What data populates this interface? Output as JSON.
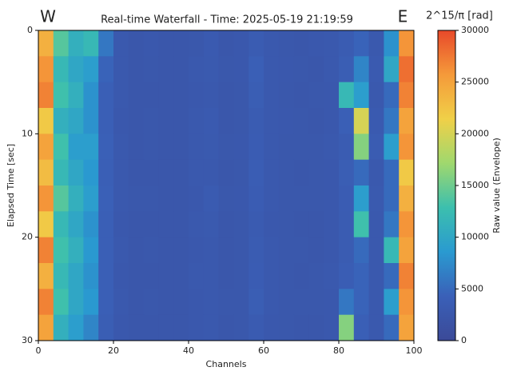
{
  "chart_data": {
    "type": "heatmap",
    "title": "Real-time Waterfall - Time: 2025-05-19 21:19:59",
    "annotations": [
      "W",
      "E"
    ],
    "xlabel": "Channels",
    "ylabel": "Elapsed Time [sec]",
    "colorbar_title": "2^15/π [rad]",
    "colorbar_label": "Raw value (Envelope)",
    "xlim": [
      0,
      100
    ],
    "ylim": [
      30,
      0
    ],
    "xticks": [
      0,
      20,
      40,
      60,
      80,
      100
    ],
    "yticks": [
      0,
      10,
      20,
      30
    ],
    "clim": [
      0,
      30000
    ],
    "cticks": [
      0,
      5000,
      10000,
      15000,
      20000,
      25000,
      30000
    ],
    "colormap": [
      "#3b4a98",
      "#3a60b8",
      "#2a9ad0",
      "#3cbfae",
      "#9fd86e",
      "#f0d048",
      "#f59a3a",
      "#e8492a"
    ],
    "x": [
      2,
      6,
      10,
      14,
      18,
      22,
      26,
      30,
      34,
      38,
      42,
      46,
      50,
      54,
      58,
      62,
      66,
      70,
      74,
      78,
      82,
      86,
      90,
      94,
      98
    ],
    "y": [
      1.25,
      3.75,
      6.25,
      8.75,
      11.25,
      13.75,
      16.25,
      18.75,
      21.25,
      23.75,
      26.25,
      28.75
    ],
    "values": [
      [
        24000,
        14000,
        11000,
        12000,
        6000,
        3000,
        2500,
        2800,
        2600,
        2500,
        2700,
        3200,
        2600,
        2800,
        3500,
        3000,
        2700,
        2600,
        2800,
        3000,
        3500,
        4500,
        3000,
        8000,
        26000
      ],
      [
        26000,
        12000,
        10000,
        9000,
        4500,
        3000,
        2600,
        2700,
        2500,
        2600,
        3000,
        3100,
        2700,
        2800,
        4000,
        3000,
        2800,
        2700,
        2600,
        2900,
        3800,
        7000,
        3200,
        10000,
        28000
      ],
      [
        27000,
        13000,
        11000,
        8000,
        4000,
        2900,
        2600,
        2600,
        2500,
        2600,
        2800,
        3000,
        2600,
        2700,
        3800,
        2900,
        2700,
        2600,
        2700,
        2800,
        12000,
        9000,
        3000,
        5000,
        27000
      ],
      [
        22000,
        11000,
        10000,
        8000,
        4000,
        2800,
        2500,
        2700,
        2600,
        2500,
        2900,
        3200,
        2600,
        2700,
        3500,
        3000,
        2800,
        2700,
        2600,
        2800,
        4000,
        20000,
        3200,
        6000,
        25000
      ],
      [
        25000,
        13000,
        9000,
        9000,
        4200,
        3000,
        2600,
        2700,
        2600,
        2600,
        3000,
        3100,
        2700,
        2800,
        3600,
        2900,
        2700,
        2700,
        2700,
        2900,
        3500,
        16000,
        3500,
        9000,
        26000
      ],
      [
        23000,
        12000,
        10000,
        8500,
        4000,
        2900,
        2600,
        2600,
        2500,
        2600,
        2900,
        3000,
        2600,
        2700,
        3700,
        3000,
        2700,
        2600,
        2700,
        2800,
        3800,
        5000,
        3000,
        5000,
        22000
      ],
      [
        26000,
        14000,
        11000,
        9000,
        4200,
        2900,
        2700,
        2700,
        2600,
        2600,
        2800,
        3300,
        2700,
        2800,
        3600,
        2900,
        2700,
        2700,
        2700,
        2800,
        3600,
        9000,
        3100,
        5000,
        24000
      ],
      [
        22000,
        12000,
        10000,
        8000,
        4000,
        2800,
        2600,
        2600,
        2500,
        2600,
        2900,
        3100,
        2600,
        2700,
        3400,
        2800,
        2700,
        2600,
        2600,
        2800,
        3500,
        13000,
        3000,
        6000,
        26000
      ],
      [
        27000,
        13000,
        11000,
        8500,
        4000,
        2900,
        2600,
        2700,
        2600,
        2600,
        2800,
        3000,
        2600,
        2700,
        3500,
        2900,
        2700,
        2700,
        2600,
        2800,
        3500,
        5000,
        3000,
        12000,
        25000
      ],
      [
        24000,
        12000,
        10000,
        8000,
        4000,
        2800,
        2600,
        2600,
        2500,
        2600,
        2900,
        3000,
        2600,
        2700,
        3600,
        3000,
        2700,
        2600,
        2700,
        2900,
        3700,
        4500,
        3000,
        5000,
        27000
      ],
      [
        27000,
        13000,
        10000,
        8500,
        4000,
        2900,
        2600,
        2700,
        2600,
        2600,
        2800,
        3000,
        2700,
        2700,
        3800,
        2900,
        2700,
        2700,
        2700,
        2800,
        6000,
        4500,
        3000,
        9000,
        26000
      ],
      [
        25000,
        11000,
        9000,
        7000,
        3800,
        2800,
        2600,
        2600,
        2500,
        2600,
        2800,
        3000,
        2600,
        2700,
        3400,
        2800,
        2700,
        2600,
        2600,
        2800,
        16000,
        4000,
        3000,
        5000,
        25000
      ]
    ]
  }
}
